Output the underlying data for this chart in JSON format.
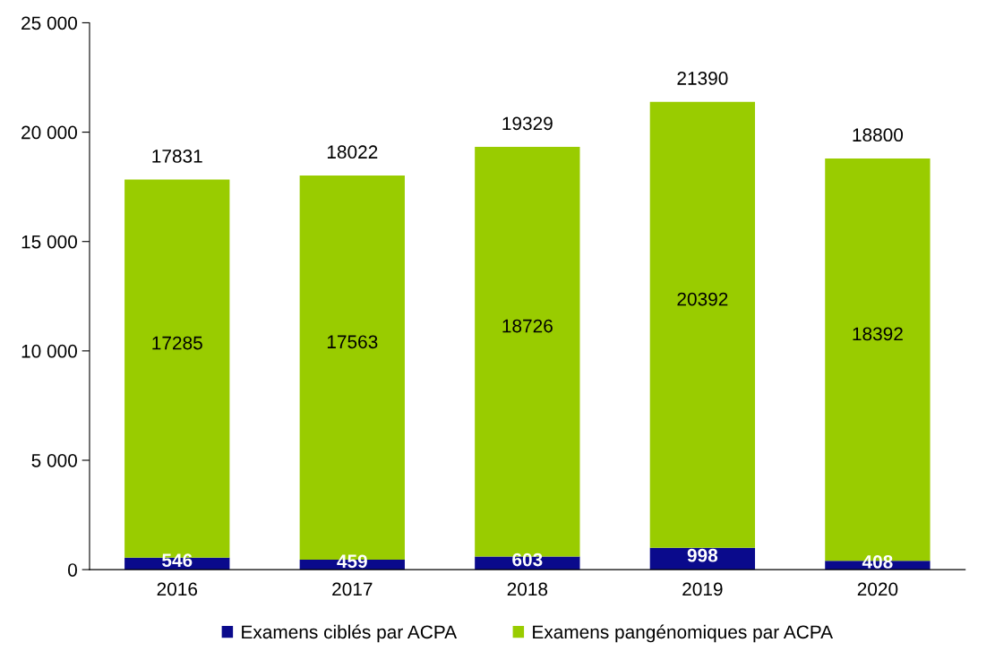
{
  "chart_data": {
    "type": "bar",
    "stacked": true,
    "categories": [
      "2016",
      "2017",
      "2018",
      "2019",
      "2020"
    ],
    "series": [
      {
        "name": "Examens ciblés par ACPA",
        "color": "#0a0a8c",
        "values": [
          546,
          459,
          603,
          998,
          408
        ]
      },
      {
        "name": "Examens pangénomiques par ACPA",
        "color": "#99cc00",
        "values": [
          17285,
          17563,
          18726,
          20392,
          18392
        ]
      }
    ],
    "data_labels": true,
    "totals": [
      "17831",
      "18022",
      "19329",
      "21390",
      "18800"
    ],
    "ylim": [
      0,
      25000
    ],
    "yticks": [
      {
        "value": 0,
        "label": "0"
      },
      {
        "value": 5000,
        "label": "5 000"
      },
      {
        "value": 10000,
        "label": "10 000"
      },
      {
        "value": 15000,
        "label": "15 000"
      },
      {
        "value": 20000,
        "label": "20 000"
      },
      {
        "value": 25000,
        "label": "25 000"
      }
    ],
    "grid": false,
    "legend": "bottom"
  }
}
